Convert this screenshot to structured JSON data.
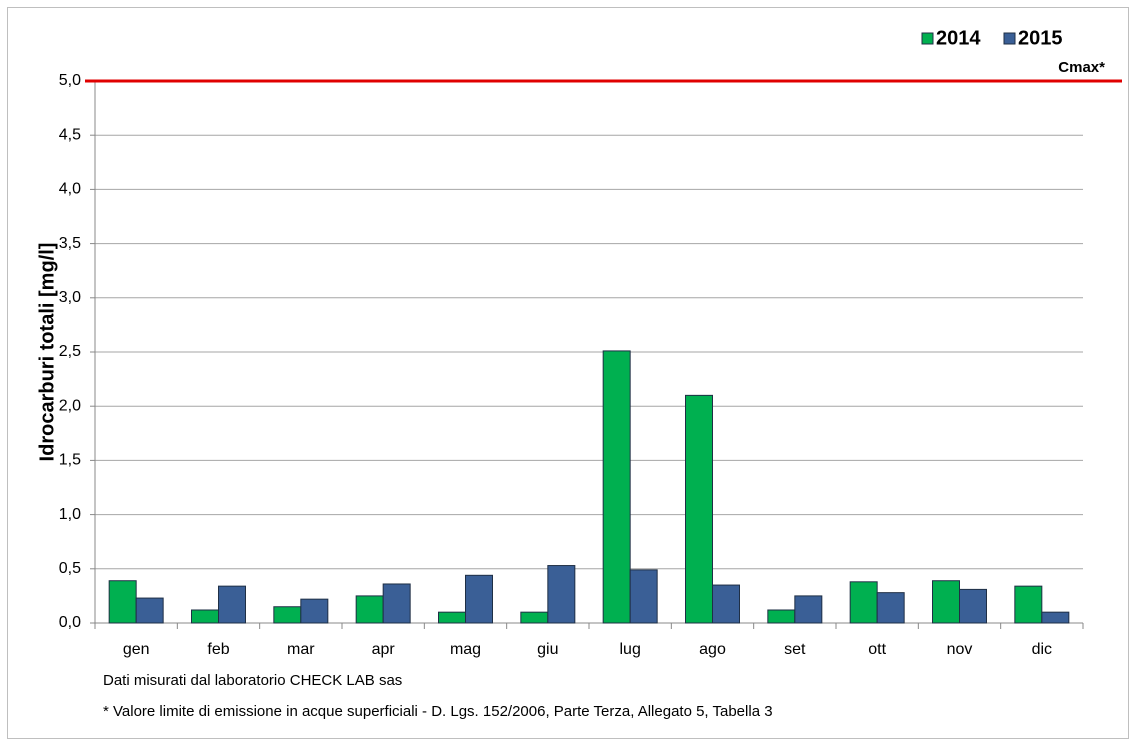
{
  "chart_data": {
    "type": "bar",
    "y_label": "Idrocarburi totali [mg/l]",
    "categories": [
      "gen",
      "feb",
      "mar",
      "apr",
      "mag",
      "giu",
      "lug",
      "ago",
      "set",
      "ott",
      "nov",
      "dic"
    ],
    "series": [
      {
        "name": "2014",
        "color": "#00b050",
        "values": [
          0.39,
          0.12,
          0.15,
          0.25,
          0.1,
          0.1,
          2.51,
          2.1,
          0.12,
          0.38,
          0.39,
          0.34
        ]
      },
      {
        "name": "2015",
        "color": "#3a5f96",
        "values": [
          0.23,
          0.34,
          0.22,
          0.36,
          0.44,
          0.53,
          0.49,
          0.35,
          0.25,
          0.28,
          0.31,
          0.1
        ]
      }
    ],
    "ylim": [
      0,
      5
    ],
    "yticks": [
      {
        "value": 0,
        "label": "0,0"
      },
      {
        "value": 0.5,
        "label": "0,5"
      },
      {
        "value": 1,
        "label": "1,0"
      },
      {
        "value": 1.5,
        "label": "1,5"
      },
      {
        "value": 2,
        "label": "2,0"
      },
      {
        "value": 2.5,
        "label": "2,5"
      },
      {
        "value": 3,
        "label": "3,0"
      },
      {
        "value": 3.5,
        "label": "3,5"
      },
      {
        "value": 4,
        "label": "4,0"
      },
      {
        "value": 4.5,
        "label": "4,5"
      },
      {
        "value": 5,
        "label": "5,0"
      }
    ],
    "grid": true,
    "legend": "top-right",
    "limit": {
      "value": 5,
      "label": "Cmax*",
      "color": "#e00000"
    },
    "notes": [
      "Dati misurati dal laboratorio CHECK LAB sas",
      "* Valore limite di emissione in acque superficiali - D. Lgs. 152/2006, Parte Terza, Allegato 5, Tabella 3"
    ]
  }
}
